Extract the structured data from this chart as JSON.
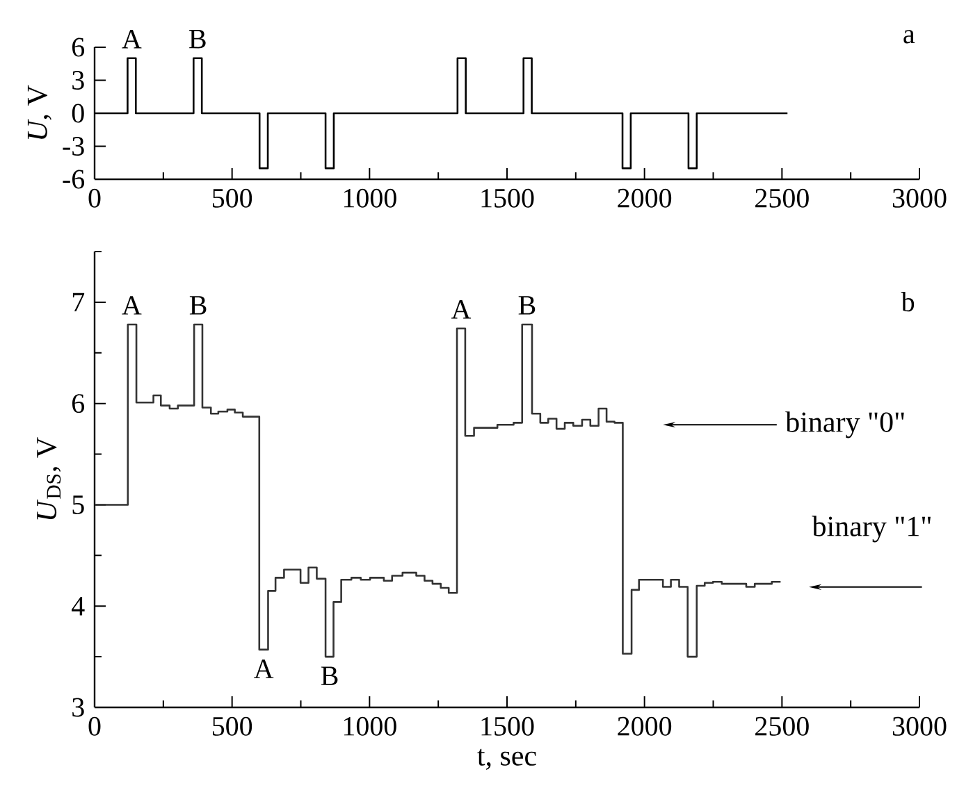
{
  "chart_data": [
    {
      "type": "step",
      "ylabel": "*U*, V",
      "series": [
        {
          "color": "#000000",
          "x": [
            0,
            120,
            150,
            360,
            390,
            600,
            630,
            840,
            870,
            1320,
            1350,
            1560,
            1590,
            1920,
            1950,
            2160,
            2190,
            2520
          ],
          "values": [
            0,
            5,
            0,
            5,
            0,
            -5,
            0,
            -5,
            0,
            5,
            0,
            5,
            0,
            -5,
            0,
            -5,
            0,
            0
          ]
        }
      ],
      "xlim": [
        0,
        3000
      ],
      "ylim": [
        -6,
        6
      ],
      "xticks": [
        0,
        {
          "value": 250,
          "label": null
        },
        500,
        {
          "value": 750,
          "label": null
        },
        1000,
        {
          "value": 1250,
          "label": null
        },
        1500,
        {
          "value": 1750,
          "label": null
        },
        2000,
        {
          "value": 2250,
          "label": null
        },
        2500,
        {
          "value": 2750,
          "label": null
        },
        3000
      ],
      "yticks": [
        -6,
        -3,
        0,
        3,
        6
      ],
      "annotations": [
        {
          "text": "A",
          "x": 135,
          "y": 5
        },
        {
          "text": "B",
          "x": 375,
          "y": 5
        },
        "a"
      ]
    },
    {
      "type": "step",
      "xlabel": "t, sec",
      "ylabel": "*U*$_{DS}$, V",
      "series": [
        {
          "color": "#333333",
          "x": [
            0,
            121,
            152,
            214,
            241,
            273,
            303,
            362,
            392,
            423,
            450,
            483,
            510,
            539,
            599,
            631,
            658,
            689,
            749,
            778,
            808,
            840,
            869,
            897,
            934,
            968,
            1002,
            1052,
            1082,
            1120,
            1170,
            1200,
            1229,
            1259,
            1288,
            1318,
            1348,
            1380,
            1465,
            1524,
            1555,
            1591,
            1621,
            1650,
            1680,
            1710,
            1741,
            1773,
            1803,
            1833,
            1862,
            1891,
            1921,
            1953,
            1980,
            2067,
            2096,
            2126,
            2157,
            2190,
            2219,
            2249,
            2281,
            2370,
            2401,
            2463,
            2495
          ],
          "values": [
            5.0,
            6.78,
            6.01,
            6.08,
            5.98,
            5.95,
            5.98,
            6.78,
            5.96,
            5.9,
            5.92,
            5.94,
            5.91,
            5.87,
            3.57,
            4.15,
            4.28,
            4.36,
            4.23,
            4.38,
            4.27,
            3.5,
            4.04,
            4.26,
            4.28,
            4.26,
            4.28,
            4.25,
            4.3,
            4.33,
            4.3,
            4.25,
            4.22,
            4.18,
            4.13,
            6.74,
            5.68,
            5.76,
            5.79,
            5.81,
            6.78,
            5.9,
            5.81,
            5.85,
            5.75,
            5.81,
            5.78,
            5.84,
            5.78,
            5.95,
            5.82,
            5.81,
            3.53,
            4.16,
            4.26,
            4.19,
            4.26,
            4.19,
            3.5,
            4.2,
            4.23,
            4.24,
            4.22,
            4.19,
            4.22,
            4.24,
            4.24
          ]
        }
      ],
      "xlim": [
        0,
        3000
      ],
      "ylim": [
        3,
        7.5
      ],
      "xticks": [
        0,
        {
          "value": 250,
          "label": null
        },
        500,
        {
          "value": 750,
          "label": null
        },
        1000,
        {
          "value": 1250,
          "label": null
        },
        1500,
        {
          "value": 1750,
          "label": null
        },
        2000,
        {
          "value": 2250,
          "label": null
        },
        2500,
        {
          "value": 2750,
          "label": null
        },
        3000
      ],
      "yticks": [
        3,
        {
          "value": 3.5,
          "label": null
        },
        4,
        {
          "value": 4.5,
          "label": null
        },
        5,
        {
          "value": 5.5,
          "label": null
        },
        6,
        {
          "value": 6.5,
          "label": null
        },
        7,
        {
          "value": 7.5,
          "label": null
        }
      ],
      "annotations": [
        {
          "text": "A",
          "x": 135,
          "y": 6.78
        },
        {
          "text": "B",
          "x": 377,
          "y": 6.78
        },
        {
          "text": "A",
          "x": 615,
          "y": 3.57
        },
        {
          "text": "B",
          "x": 855,
          "y": 3.5
        },
        {
          "text": "A",
          "x": 1333,
          "y": 6.74
        },
        {
          "text": "B",
          "x": 1573,
          "y": 6.78
        },
        "binary \"0\"",
        "binary \"1\"",
        "b"
      ]
    }
  ]
}
